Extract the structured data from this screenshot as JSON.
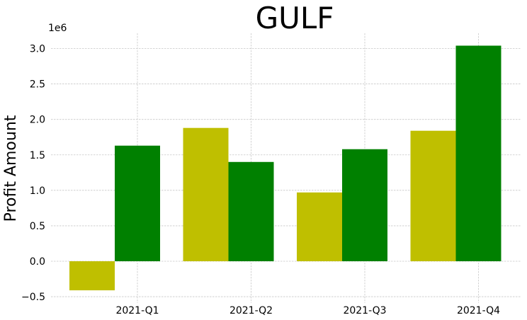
{
  "chart_data": {
    "type": "bar",
    "title": "GULF",
    "ylabel": "Profit Amount",
    "xlabel": "",
    "y_offset_label": "1e6",
    "categories": [
      "2021-Q1",
      "2021-Q2",
      "2021-Q3",
      "2021-Q4"
    ],
    "ylim": [
      -0.55,
      3.2
    ],
    "y_ticks": [
      -0.5,
      0.0,
      0.5,
      1.0,
      1.5,
      2.0,
      2.5,
      3.0
    ],
    "y_tick_labels": [
      "−0.5",
      "0.0",
      "0.5",
      "1.0",
      "1.5",
      "2.0",
      "2.5",
      "3.0"
    ],
    "grid": true,
    "series": [
      {
        "color": "#bfbf00",
        "values": [
          -0.41,
          1.88,
          0.97,
          1.84
        ]
      },
      {
        "color": "#008000",
        "values": [
          1.63,
          1.4,
          1.58,
          3.04
        ]
      }
    ]
  }
}
